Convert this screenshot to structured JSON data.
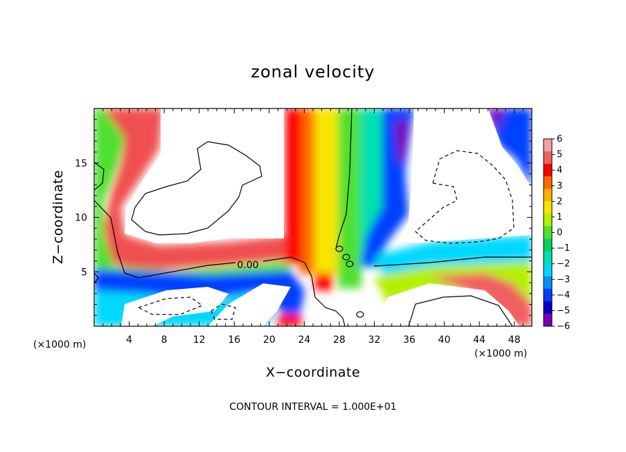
{
  "chart_data": {
    "type": "heatmap",
    "title": "zonal velocity",
    "xlabel": "X−coordinate",
    "ylabel": "Z−coordinate",
    "x_unit_left": "(×1000 m)",
    "x_unit_right": "(×1000 m)",
    "footer": "CONTOUR INTERVAL = 1.000E+01",
    "contour_label": "0.00",
    "xlim": [
      0,
      50
    ],
    "ylim": [
      0,
      20
    ],
    "x_ticks": [
      "4",
      "8",
      "12",
      "16",
      "20",
      "24",
      "28",
      "32",
      "36",
      "40",
      "44",
      "48"
    ],
    "y_ticks": [
      "5",
      "10",
      "15"
    ],
    "colorbar": {
      "levels": [
        "6",
        "5",
        "4",
        "3",
        "2",
        "1",
        "0",
        "−1",
        "−2",
        "−3",
        "−4",
        "−5",
        "−6"
      ],
      "colors": [
        "#f4a0a0",
        "#f06060",
        "#ff0000",
        "#ff6a00",
        "#ffb000",
        "#f5e600",
        "#b4f000",
        "#50e030",
        "#00d060",
        "#00e0b0",
        "#00d8ff",
        "#0090ff",
        "#0040ff",
        "#0000c8",
        "#7a00b4"
      ],
      "out_of_range": "white (|u| > 6)"
    },
    "features": [
      {
        "name": "westerly jet (positive core)",
        "x_range": [
          21,
          27
        ],
        "z_range": [
          3,
          20
        ]
      },
      {
        "name": "easterly band (negative)",
        "x_range": [
          29,
          35
        ],
        "z_range": [
          6,
          20
        ]
      },
      {
        "name": "negative lobe upper right",
        "x_range": [
          44,
          50
        ],
        "z_range": [
          12,
          20
        ]
      },
      {
        "name": "near-surface easterly layer",
        "x_range": [
          0,
          50
        ],
        "z_range": [
          3,
          6
        ]
      }
    ]
  }
}
